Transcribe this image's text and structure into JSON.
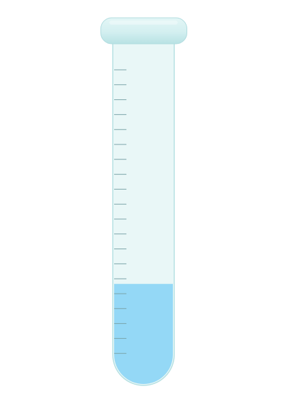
{
  "test_tube": {
    "tick_count": 20,
    "fill_level": 0.3,
    "colors": {
      "background": "#ffffff",
      "glass_fill": "#e9f7f7",
      "glass_stroke": "#b6e0e2",
      "rim_fill": "#d3eff0",
      "rim_shade": "#b8e2e4",
      "rim_stroke": "#b0dcdf",
      "liquid": "#94d8f6",
      "liquid_bottom": "#86cef0",
      "tick": "#7aa3a8"
    }
  }
}
